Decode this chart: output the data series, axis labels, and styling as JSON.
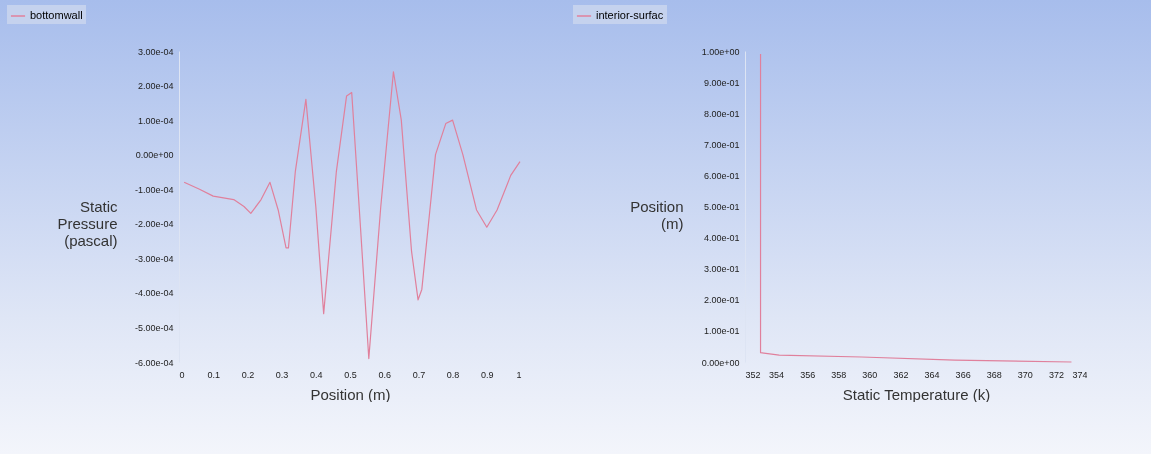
{
  "chart_data": [
    {
      "type": "line",
      "xlabel": "Position (m)",
      "ylabel": "Static Pressure (pascal)",
      "legend": "top left",
      "grid": false,
      "series": [
        {
          "name": "bottomwall",
          "color": "#e0809c",
          "x": [
            0.015,
            0.06,
            0.1,
            0.16,
            0.19,
            0.21,
            0.24,
            0.266,
            0.29,
            0.313,
            0.32,
            0.34,
            0.371,
            0.4,
            0.423,
            0.46,
            0.49,
            0.505,
            0.53,
            0.555,
            0.59,
            0.627,
            0.65,
            0.68,
            0.699,
            0.71,
            0.75,
            0.78,
            0.8,
            0.83,
            0.87,
            0.9,
            0.93,
            0.97,
            0.997
          ],
          "values": [
            -8e-05,
            -0.0001,
            -0.00012,
            -0.00013,
            -0.00015,
            -0.00017,
            -0.00013,
            -8e-05,
            -0.00016,
            -0.00027,
            -0.00027,
            -5e-05,
            0.00016,
            -0.00015,
            -0.00046,
            -5e-05,
            0.00017,
            0.00018,
            -0.0002,
            -0.00059,
            -0.00015,
            0.00024,
            0.0001,
            -0.00028,
            -0.00042,
            -0.00039,
            0.0,
            9e-05,
            0.0001,
            0.0,
            -0.00016,
            -0.00021,
            -0.00016,
            -6e-05,
            -2e-05
          ]
        }
      ],
      "xlim": [
        0,
        1
      ],
      "xticks": [
        0,
        0.1,
        0.2,
        0.3,
        0.4,
        0.5,
        0.6,
        0.7,
        0.8,
        0.9,
        1
      ],
      "ylim": [
        -0.0006,
        0.0003
      ],
      "yticks": [
        {
          "value": -0.0006,
          "label": "-6.00e-04"
        },
        {
          "value": -0.0005,
          "label": "-5.00e-04"
        },
        {
          "value": -0.0004,
          "label": "-4.00e-04"
        },
        {
          "value": -0.0003,
          "label": "-3.00e-04"
        },
        {
          "value": -0.0002,
          "label": "-2.00e-04"
        },
        {
          "value": -0.0001,
          "label": "-1.00e-04"
        },
        {
          "value": 0,
          "label": "0.00e+00"
        },
        {
          "value": 0.0001,
          "label": "1.00e-04"
        },
        {
          "value": 0.0002,
          "label": "2.00e-04"
        },
        {
          "value": 0.0003,
          "label": "3.00e-04"
        }
      ]
    },
    {
      "type": "line",
      "xlabel": "Static Temperature (k)",
      "ylabel": "Position (m)",
      "legend": "top left",
      "grid": false,
      "series": [
        {
          "name": "interior-surfac",
          "color": "#e0809c",
          "x": [
            353,
            353,
            354.2,
            359.5,
            365.5,
            373
          ],
          "values": [
            0.99,
            0.03,
            0.022,
            0.016,
            0.006,
            0
          ]
        }
      ],
      "xlim": [
        352,
        374
      ],
      "xticks": [
        352,
        354,
        356,
        358,
        360,
        362,
        364,
        366,
        368,
        370,
        372,
        374
      ],
      "ylim": [
        0,
        1
      ],
      "yticks": [
        {
          "value": 0,
          "label": "0.00e+00"
        },
        {
          "value": 0.1,
          "label": "1.00e-01"
        },
        {
          "value": 0.2,
          "label": "2.00e-01"
        },
        {
          "value": 0.3,
          "label": "3.00e-01"
        },
        {
          "value": 0.4,
          "label": "4.00e-01"
        },
        {
          "value": 0.5,
          "label": "5.00e-01"
        },
        {
          "value": 0.6,
          "label": "6.00e-01"
        },
        {
          "value": 0.7,
          "label": "7.00e-01"
        },
        {
          "value": 0.8,
          "label": "8.00e-01"
        },
        {
          "value": 0.9,
          "label": "9.00e-01"
        },
        {
          "value": 1,
          "label": "1.00e+00"
        }
      ]
    }
  ]
}
